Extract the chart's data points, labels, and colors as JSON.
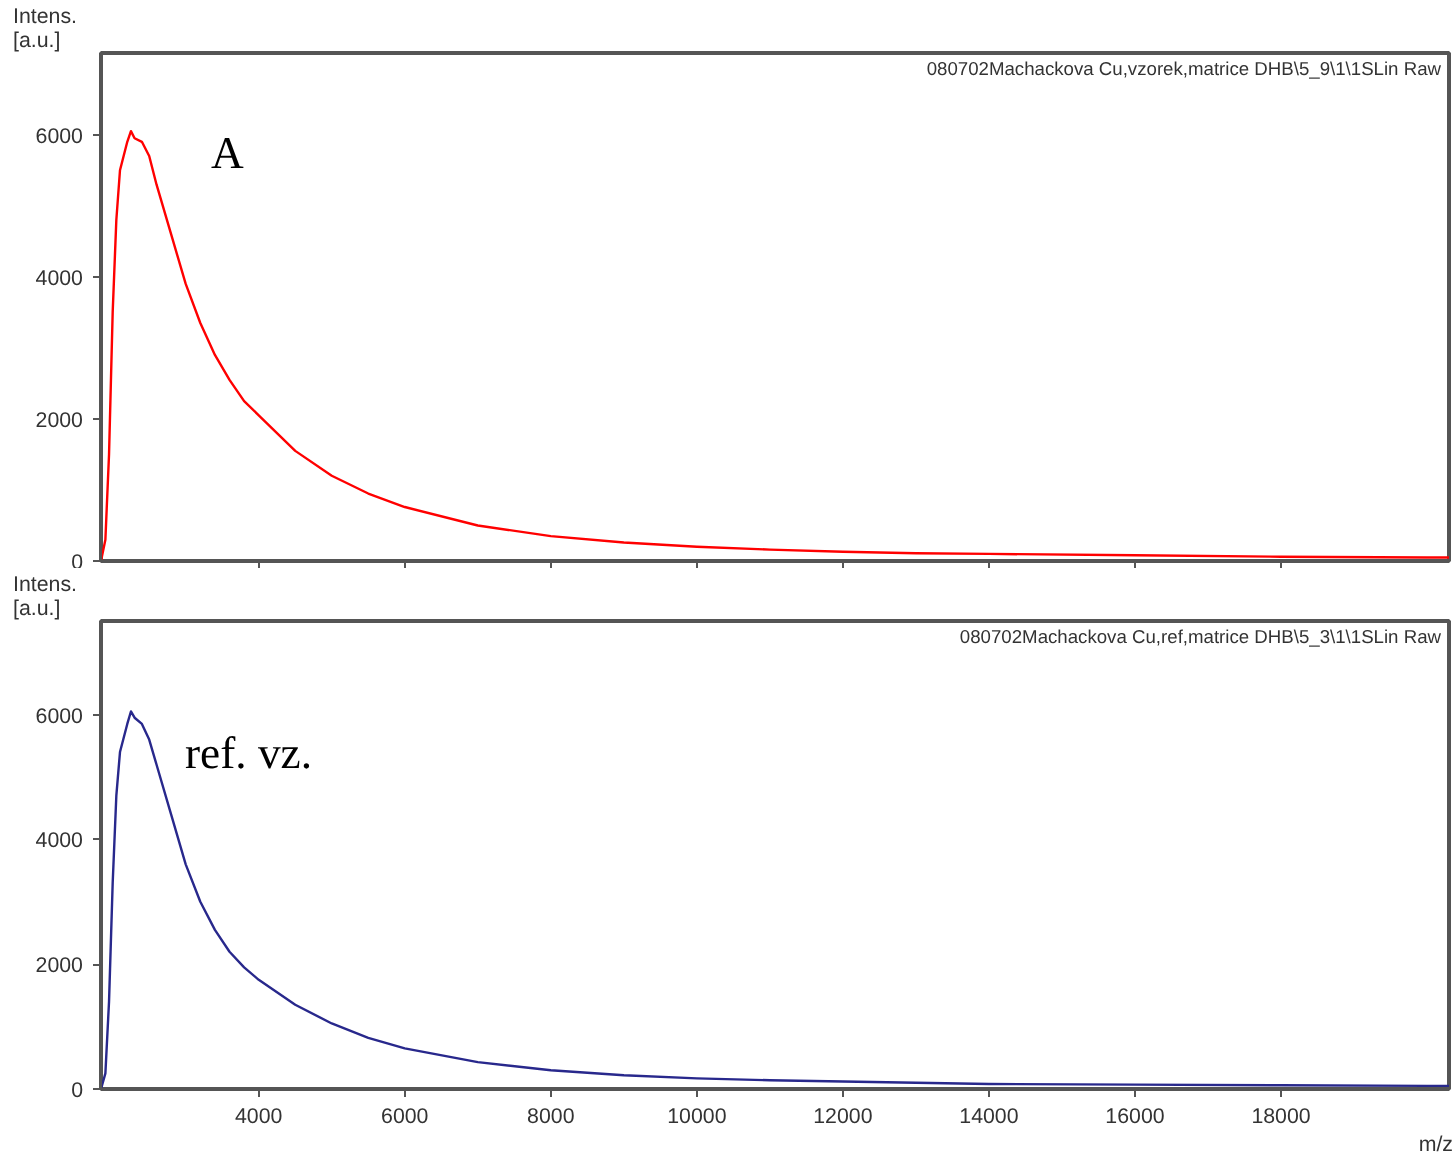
{
  "chart_data": [
    {
      "type": "line",
      "title": "080702Machackova Cu,vzorek,matrice DHB\\5_9\\1\\1SLin Raw",
      "ylabel": "Intens.\n[a.u.]",
      "annotations": [
        "A"
      ],
      "x": [
        1840,
        1900,
        1950,
        2000,
        2050,
        2100,
        2200,
        2250,
        2300,
        2400,
        2500,
        2600,
        2800,
        3000,
        3200,
        3400,
        3600,
        3800,
        4000,
        4500,
        5000,
        5500,
        6000,
        7000,
        8000,
        9000,
        10000,
        11000,
        12000,
        13000,
        14000,
        16000,
        18000,
        20000,
        20300
      ],
      "series": [
        {
          "color": "#ff0000",
          "values": [
            0,
            300,
            1500,
            3500,
            4800,
            5500,
            5900,
            6050,
            5950,
            5900,
            5700,
            5300,
            4600,
            3900,
            3350,
            2900,
            2550,
            2250,
            2050,
            1550,
            1200,
            950,
            760,
            500,
            350,
            260,
            200,
            160,
            130,
            110,
            100,
            80,
            60,
            50,
            50
          ]
        }
      ],
      "xlim": [
        1840,
        20300
      ],
      "ylim": [
        0,
        7150
      ],
      "xticks": [
        4000,
        6000,
        8000,
        10000,
        12000,
        14000,
        16000,
        18000
      ],
      "yticks": [
        0,
        2000,
        4000,
        6000
      ],
      "tick_labels": "y"
    },
    {
      "type": "line",
      "title": "080702Machackova Cu,ref,matrice DHB\\5_3\\1\\1SLin Raw",
      "ylabel": "Intens.\n[a.u.]",
      "xlabel": "m/z",
      "annotations": [
        "ref. vz."
      ],
      "x": [
        1840,
        1900,
        1950,
        2000,
        2050,
        2100,
        2200,
        2250,
        2300,
        2400,
        2500,
        2600,
        2800,
        3000,
        3200,
        3400,
        3600,
        3800,
        4000,
        4500,
        5000,
        5500,
        6000,
        7000,
        8000,
        9000,
        10000,
        11000,
        12000,
        13000,
        14000,
        16000,
        18000,
        20000,
        20300
      ],
      "series": [
        {
          "color": "#28288c",
          "values": [
            0,
            250,
            1400,
            3300,
            4700,
            5400,
            5850,
            6050,
            5950,
            5850,
            5600,
            5200,
            4400,
            3600,
            3000,
            2550,
            2200,
            1950,
            1750,
            1350,
            1050,
            820,
            650,
            430,
            300,
            220,
            170,
            140,
            120,
            100,
            80,
            70,
            60,
            50,
            50
          ]
        }
      ],
      "xlim": [
        1840,
        20300
      ],
      "ylim": [
        0,
        7500
      ],
      "xticks": [
        4000,
        6000,
        8000,
        10000,
        12000,
        14000,
        16000,
        18000
      ],
      "yticks": [
        0,
        2000,
        4000,
        6000
      ]
    }
  ]
}
